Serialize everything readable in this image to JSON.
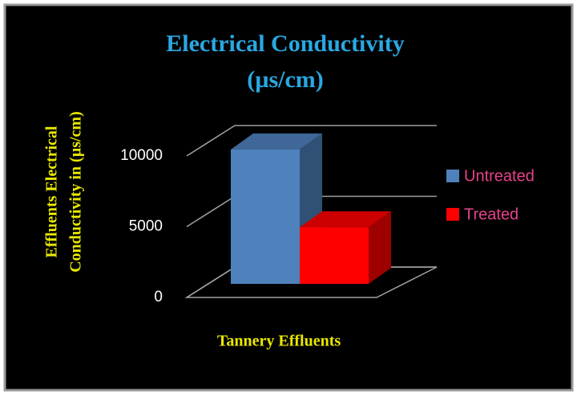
{
  "chart_data": {
    "type": "bar3d",
    "title": [
      "Electrical Conductivity",
      "(µs/cm)"
    ],
    "y_label": [
      "Effluents Electrical",
      "Conductivity in (µs/cm)"
    ],
    "x_label": "Tannery Effluents",
    "categories": [
      null
    ],
    "series": [
      {
        "name": "Untreated",
        "color": "#4f81bd",
        "values": [
          9500
        ]
      },
      {
        "name": "Treated",
        "color": "#ff0000",
        "values": [
          4000
        ]
      }
    ],
    "ylim": [
      0,
      10000
    ],
    "yticks": [
      0,
      5000,
      10000
    ],
    "grid": true,
    "legend": "right"
  }
}
